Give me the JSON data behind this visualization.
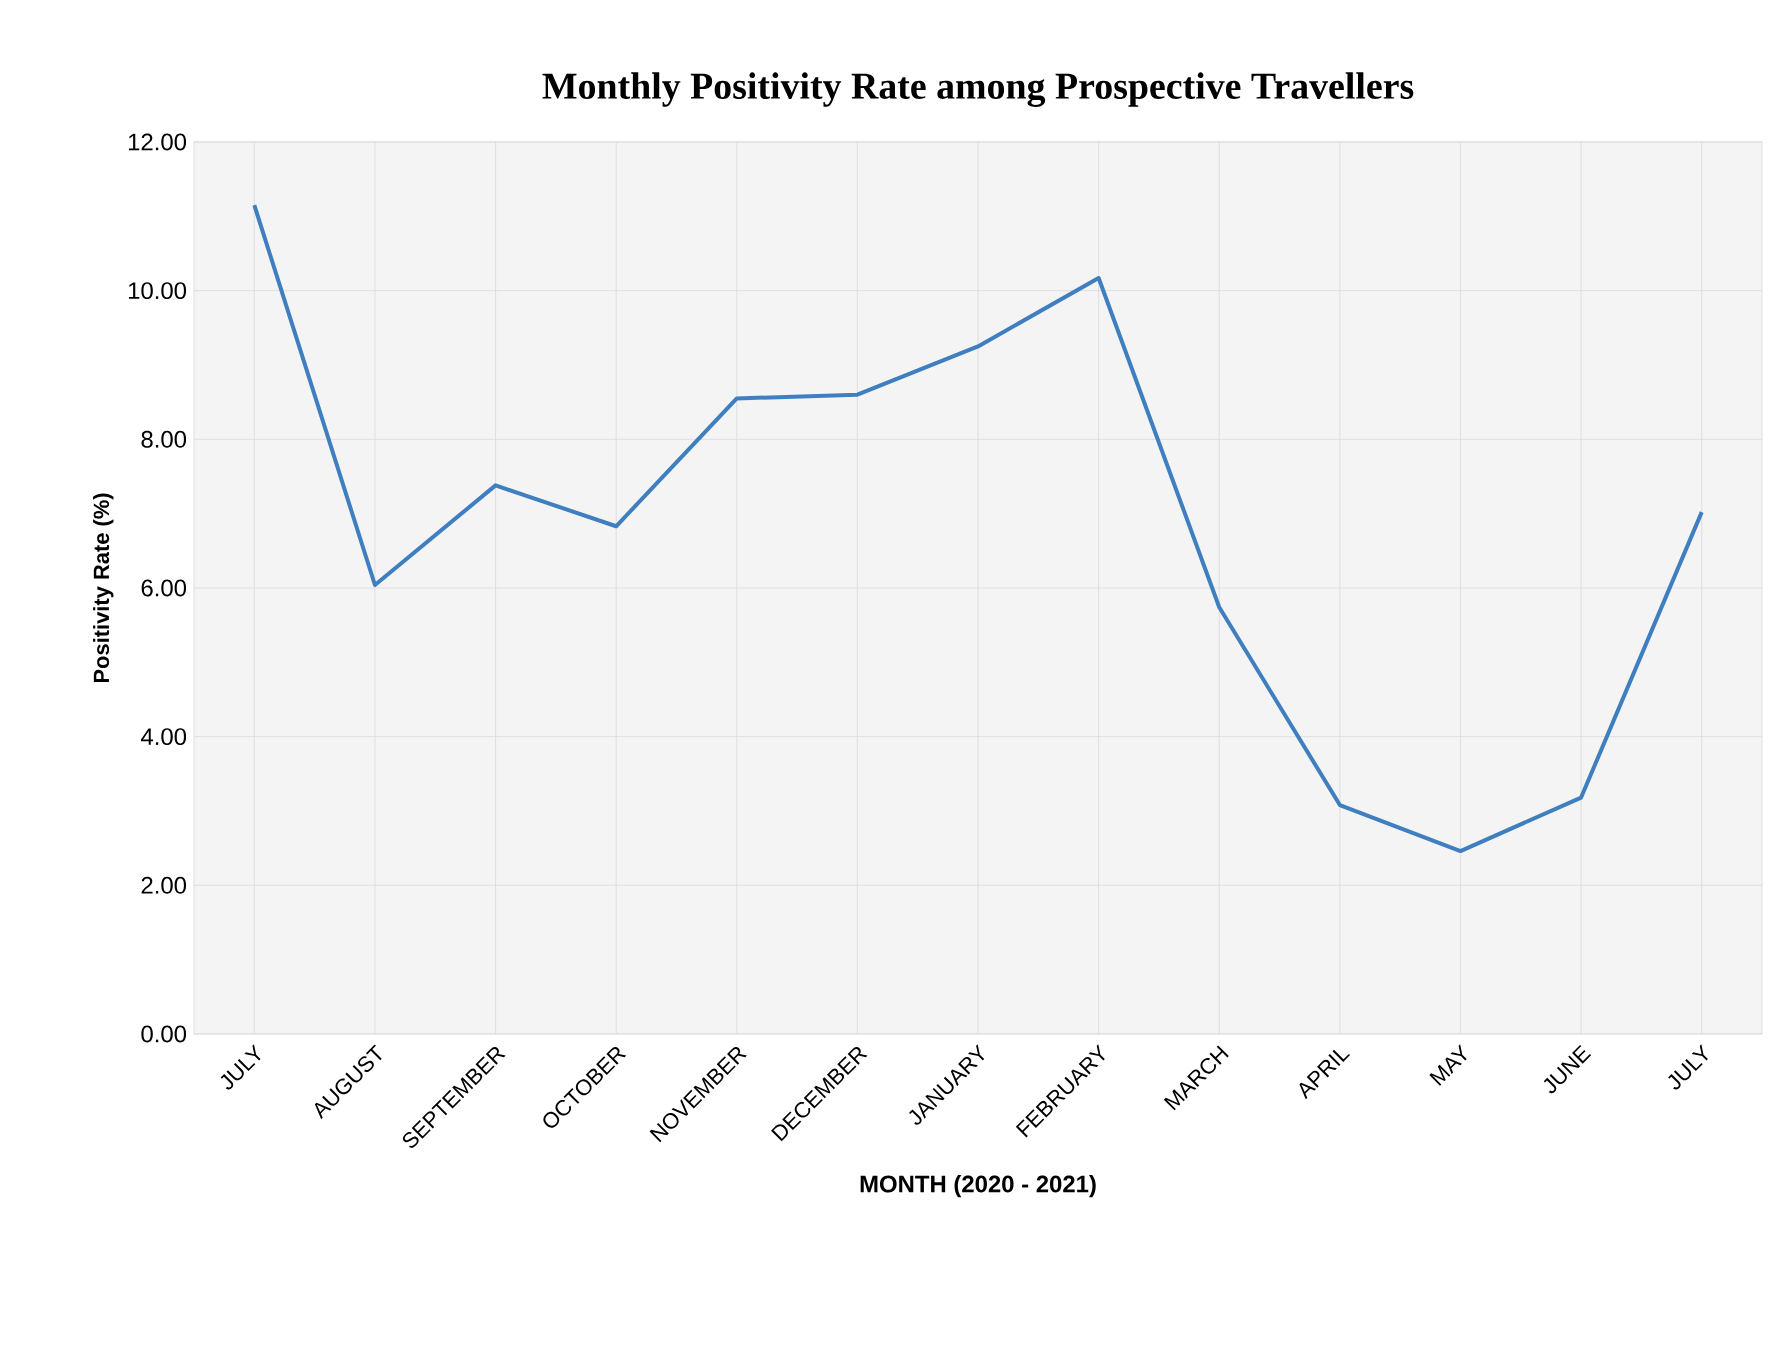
{
  "chart_data": {
    "type": "line",
    "title": "Monthly Positivity Rate among Prospective Travellers",
    "xlabel": "MONTH (2020 - 2021)",
    "ylabel": "Positivity Rate (%)",
    "categories": [
      "JULY",
      "AUGUST",
      "SEPTEMBER",
      "OCTOBER",
      "NOVEMBER",
      "DECEMBER",
      "JANUARY",
      "FEBRUARY",
      "MARCH",
      "APRIL",
      "MAY",
      "JUNE",
      "JULY"
    ],
    "series": [
      {
        "color": "#3f7fbf",
        "values": [
          11.15,
          6.04,
          7.38,
          6.83,
          8.55,
          8.6,
          9.25,
          10.17,
          5.74,
          3.08,
          2.46,
          3.18,
          7.02
        ]
      }
    ],
    "ylim": [
      0,
      12
    ],
    "yticks": [
      {
        "value": 0,
        "label": "0.00"
      },
      {
        "value": 2,
        "label": "2.00"
      },
      {
        "value": 4,
        "label": "4.00"
      },
      {
        "value": 6,
        "label": "6.00"
      },
      {
        "value": 8,
        "label": "8.00"
      },
      {
        "value": 10,
        "label": "10.00"
      },
      {
        "value": 12,
        "label": "12.00"
      }
    ],
    "grid": true,
    "marker": "none",
    "line_style": "solid"
  }
}
